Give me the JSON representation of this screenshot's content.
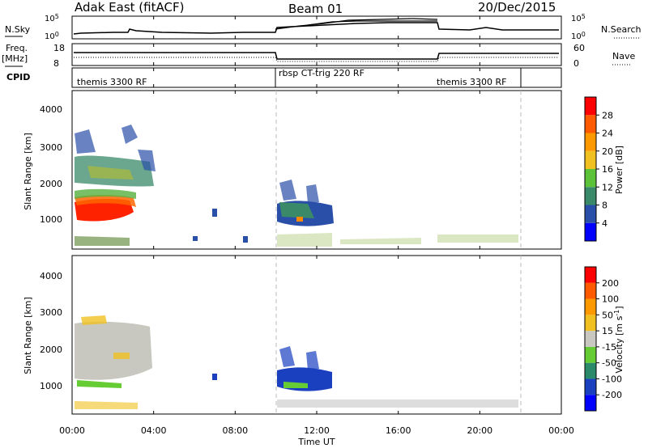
{
  "header": {
    "station": "Adak East (fitACF)",
    "beam": "Beam 01",
    "date": "20/Dec/2015"
  },
  "colors": {
    "power_scale": [
      "#0000ff",
      "#2a4fa8",
      "#3a8a6a",
      "#5cc23a",
      "#f0c020",
      "#ff9900",
      "#ff5a00",
      "#ff0000"
    ],
    "velocity_scale": [
      "#0000ff",
      "#1a40c0",
      "#2a8a6a",
      "#66cc33",
      "#c8c8c0",
      "#f0c020",
      "#ff9900",
      "#ff5a00",
      "#ff0000"
    ]
  },
  "chart_data": [
    {
      "type": "line",
      "panel": "nsky-nsearch",
      "left_label": "N.Sky",
      "left_ticks": [
        "10^5",
        "10^0"
      ],
      "right_label": "N.Search",
      "right_ticks": [
        "10^5",
        "10^0"
      ]
    },
    {
      "type": "line",
      "panel": "freq-nave",
      "left_label": "Freq.",
      "left_unit": "[MHz]",
      "left_ticks": [
        "18",
        "8"
      ],
      "right_label": "Nave",
      "right_ticks": [
        "60",
        "0"
      ]
    },
    {
      "type": "table",
      "panel": "cpid",
      "label": "CPID",
      "segments": [
        {
          "name": "themis 3300 RF",
          "start_h": 0,
          "end_h": 10
        },
        {
          "name": "rbsp CT-trig 220 RF",
          "start_h": 10,
          "end_h": 18
        },
        {
          "name": "themis 3300 RF",
          "start_h": 18,
          "end_h": 22
        }
      ]
    },
    {
      "type": "heatmap",
      "panel": "power",
      "ylabel": "Slant Range [km]",
      "yticks": [
        "1000",
        "2000",
        "3000",
        "4000"
      ],
      "colorbar_label": "Power [dB]",
      "colorbar_ticks": [
        "4",
        "8",
        "12",
        "16",
        "20",
        "24",
        "28"
      ]
    },
    {
      "type": "heatmap",
      "panel": "velocity",
      "ylabel": "Slant Range [km]",
      "yticks": [
        "1000",
        "2000",
        "3000",
        "4000"
      ],
      "colorbar_label": "Velocity [m s",
      "colorbar_label_sup": "-1",
      "colorbar_label_end": "]",
      "colorbar_ticks": [
        "200",
        "100",
        "50",
        "15",
        "-15",
        "-50",
        "-100",
        "-200"
      ]
    }
  ],
  "xaxis": {
    "label": "Time UT",
    "ticks": [
      "00:00",
      "04:00",
      "08:00",
      "12:00",
      "16:00",
      "20:00",
      "00:00"
    ]
  }
}
